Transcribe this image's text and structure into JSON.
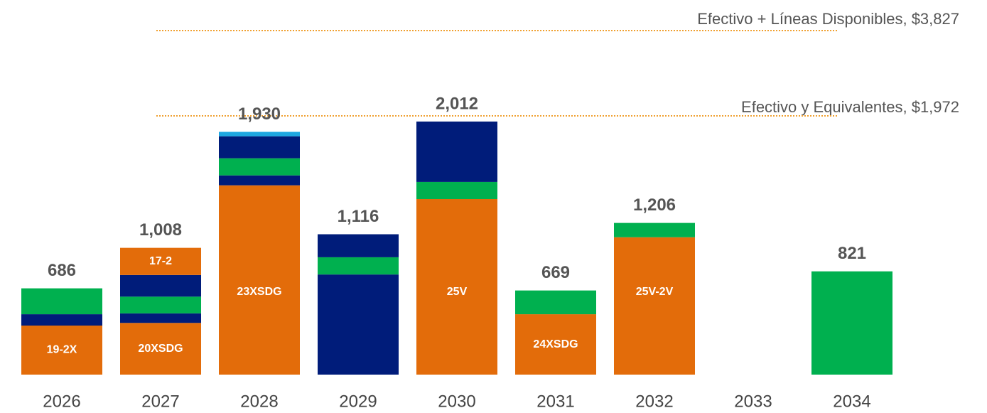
{
  "chart_data": {
    "type": "bar",
    "stacked": true,
    "annotations": [
      "Efectivo + Líneas Disponibles, $3,827",
      "Efectivo y Equivalentes, $1,972"
    ],
    "annotation_color": "#f0a030",
    "bars": [
      {
        "category": "2026",
        "total": 686,
        "segments": [
          {
            "value": 390,
            "color": "#e36c0a",
            "label": "19-2X"
          },
          {
            "value": 90,
            "color": "#001c7a"
          },
          {
            "value": 206,
            "color": "#00b04f"
          }
        ]
      },
      {
        "category": "2027",
        "total": 1008,
        "total_label": "1,008",
        "segments": [
          {
            "value": 411,
            "color": "#e36c0a",
            "label": "20XSDG"
          },
          {
            "value": 76,
            "color": "#001c7a"
          },
          {
            "value": 133,
            "color": "#00b04f"
          },
          {
            "value": 172,
            "color": "#001c7a"
          },
          {
            "value": 216,
            "color": "#e36c0a",
            "label": "17-2"
          }
        ]
      },
      {
        "category": "2028",
        "total": 1930,
        "total_label": "1,930",
        "segments": [
          {
            "value": 1505,
            "color": "#e36c0a",
            "label": "23XSDG"
          },
          {
            "value": 79,
            "color": "#001c7a"
          },
          {
            "value": 136,
            "color": "#00b04f"
          },
          {
            "value": 175,
            "color": "#001c7a"
          },
          {
            "value": 35,
            "color": "#1ea7e1"
          }
        ]
      },
      {
        "category": "2029",
        "total": 1116,
        "total_label": "1,116",
        "segments": [
          {
            "value": 796,
            "color": "#001c7a"
          },
          {
            "value": 137,
            "color": "#00b04f"
          },
          {
            "value": 183,
            "color": "#001c7a"
          }
        ]
      },
      {
        "category": "2030",
        "total": 2012,
        "total_label": "2,012",
        "segments": [
          {
            "value": 1396,
            "color": "#e36c0a",
            "label": "25V"
          },
          {
            "value": 136,
            "color": "#00b04f"
          },
          {
            "value": 480,
            "color": "#001c7a"
          }
        ]
      },
      {
        "category": "2031",
        "total": 669,
        "segments": [
          {
            "value": 480,
            "color": "#e36c0a",
            "label": "24XSDG"
          },
          {
            "value": 189,
            "color": "#00b04f"
          }
        ]
      },
      {
        "category": "2032",
        "total": 1206,
        "total_label": "1,206",
        "segments": [
          {
            "value": 1092,
            "color": "#e36c0a",
            "label": "25V-2V"
          },
          {
            "value": 114,
            "color": "#00b04f"
          }
        ]
      },
      {
        "category": "2033",
        "total": null,
        "segments": []
      },
      {
        "category": "2034",
        "total": 821,
        "segments": [
          {
            "value": 821,
            "color": "#00b04f"
          }
        ]
      }
    ]
  }
}
